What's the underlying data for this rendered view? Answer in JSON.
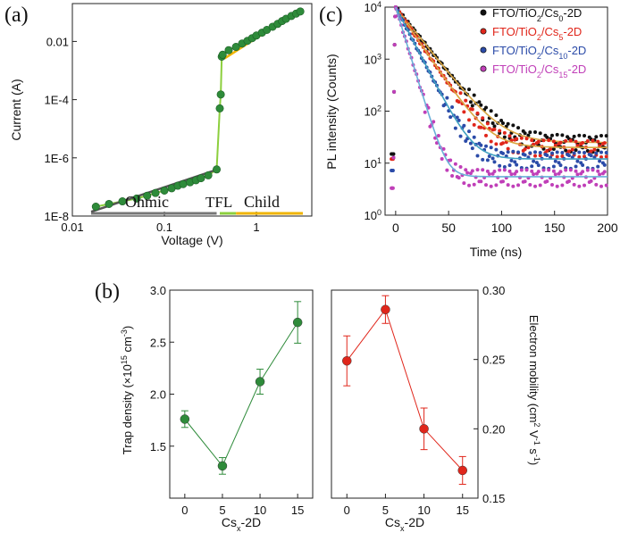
{
  "chart_data": [
    {
      "panel": "(a)",
      "type": "scatter",
      "xscale": "log",
      "yscale": "log",
      "xlabel": "Voltage (V)",
      "ylabel": "Current (A)",
      "xlim": [
        0.01,
        4.0
      ],
      "ylim": [
        1e-08,
        0.2
      ],
      "xticks": [
        {
          "v": 0.01,
          "label": "0.01"
        },
        {
          "v": 0.1,
          "label": "0.1"
        },
        {
          "v": 1,
          "label": "1"
        }
      ],
      "yticks": [
        {
          "v": 1e-08,
          "label": "1E-8"
        },
        {
          "v": 1e-06,
          "label": "1E-6"
        },
        {
          "v": 0.0001,
          "label": "1E-4"
        },
        {
          "v": 0.01,
          "label": "0.01"
        }
      ],
      "marker_color": "#2e8b3a",
      "trace_color": "#8ccf3d",
      "points": [
        [
          0.018,
          2.1e-08
        ],
        [
          0.025,
          2.6e-08
        ],
        [
          0.035,
          3.2e-08
        ],
        [
          0.05,
          4e-08
        ],
        [
          0.065,
          5e-08
        ],
        [
          0.08,
          6.2e-08
        ],
        [
          0.1,
          7.5e-08
        ],
        [
          0.12,
          9e-08
        ],
        [
          0.14,
          1.1e-07
        ],
        [
          0.16,
          1.25e-07
        ],
        [
          0.19,
          1.45e-07
        ],
        [
          0.22,
          1.7e-07
        ],
        [
          0.25,
          2e-07
        ],
        [
          0.3,
          2.5e-07
        ],
        [
          0.37,
          4e-07
        ],
        [
          0.4,
          5e-05
        ],
        [
          0.41,
          0.00015
        ],
        [
          0.42,
          0.003
        ],
        [
          0.43,
          0.0035
        ],
        [
          0.5,
          0.005
        ],
        [
          0.6,
          0.0065
        ],
        [
          0.7,
          0.0085
        ],
        [
          0.8,
          0.0105
        ],
        [
          0.9,
          0.013
        ],
        [
          1.0,
          0.016
        ],
        [
          1.15,
          0.02
        ],
        [
          1.3,
          0.025
        ],
        [
          1.5,
          0.032
        ],
        [
          1.7,
          0.04
        ],
        [
          1.9,
          0.05
        ],
        [
          2.1,
          0.06
        ],
        [
          2.4,
          0.075
        ],
        [
          2.7,
          0.09
        ],
        [
          3.0,
          0.107
        ]
      ],
      "fits": [
        {
          "name": "Ohmic fit",
          "color": "#555555",
          "x": [
            0.016,
            0.36
          ],
          "y": [
            1.4e-08,
            3.8e-07
          ]
        },
        {
          "name": "Child fit",
          "color": "#f0b400",
          "x": [
            0.45,
            3.1
          ],
          "y": [
            0.0026,
            0.13
          ]
        }
      ],
      "regions": [
        {
          "label": "Ohmic",
          "color": "#777777",
          "x": [
            0.016,
            0.37
          ]
        },
        {
          "label": "TFL",
          "color": "#8ccf3d",
          "x": [
            0.4,
            0.6
          ]
        },
        {
          "label": "Child",
          "color": "#f0b400",
          "x": [
            0.6,
            3.2
          ]
        }
      ]
    },
    {
      "panel": "(c)",
      "type": "line",
      "yscale": "log",
      "xlabel": "Time (ns)",
      "ylabel": "PL intensity (Counts)",
      "xlim": [
        -10,
        200
      ],
      "ylim": [
        1,
        10000
      ],
      "xticks": [
        {
          "v": 0,
          "label": "0"
        },
        {
          "v": 50,
          "label": "50"
        },
        {
          "v": 100,
          "label": "100"
        },
        {
          "v": 150,
          "label": "150"
        },
        {
          "v": 200,
          "label": "200"
        }
      ],
      "yticks": [
        {
          "v": 1,
          "base": "10",
          "exp": "0"
        },
        {
          "v": 10,
          "base": "10",
          "exp": "1"
        },
        {
          "v": 100,
          "base": "10",
          "exp": "2"
        },
        {
          "v": 1000,
          "base": "10",
          "exp": "3"
        },
        {
          "v": 10000,
          "base": "10",
          "exp": "4"
        }
      ],
      "legend_position": "top-right",
      "series": [
        {
          "legend": [
            {
              "t": "FTO/TiO"
            },
            {
              "t": "2",
              "sub": true
            },
            {
              "t": "/Cs"
            },
            {
              "t": "0",
              "sub": true
            },
            {
              "t": "-2D"
            }
          ],
          "color": "#111111",
          "fit_color": "#d9a640",
          "peak": 10000,
          "tau": 17,
          "floor": 25
        },
        {
          "legend": [
            {
              "t": "FTO/TiO"
            },
            {
              "t": "2",
              "sub": true
            },
            {
              "t": "/Cs"
            },
            {
              "t": "5",
              "sub": true
            },
            {
              "t": "-2D"
            }
          ],
          "color": "#e0261b",
          "fit_color": "#d9a640",
          "peak": 10000,
          "tau": 14.5,
          "floor": 20
        },
        {
          "legend": [
            {
              "t": "FTO/TiO"
            },
            {
              "t": "2",
              "sub": true
            },
            {
              "t": "/Cs"
            },
            {
              "t": "10",
              "sub": true
            },
            {
              "t": "-2D"
            }
          ],
          "color": "#2b4ba8",
          "fit_color": "#3fa0c0",
          "peak": 10000,
          "tau": 11,
          "floor": 12
        },
        {
          "legend": [
            {
              "t": "FTO/TiO"
            },
            {
              "t": "2",
              "sub": true
            },
            {
              "t": "/Cs"
            },
            {
              "t": "15",
              "sub": true
            },
            {
              "t": "-2D"
            }
          ],
          "color": "#c03fb8",
          "fit_color": "#6ab0d8",
          "peak": 10000,
          "tau": 6.5,
          "floor": 5.5
        }
      ]
    },
    {
      "panel": "(b)",
      "type": "scatter",
      "xlabel_main": "Cs",
      "xlabel_sub": "x",
      "xlabel_tail": "-2D",
      "ylabel_parts": [
        {
          "t": "Trap density (×10"
        },
        {
          "t": "15",
          "sup": true
        },
        {
          "t": " cm"
        },
        {
          "t": "-3",
          "sup": true
        },
        {
          "t": ")"
        }
      ],
      "xlim": [
        -2,
        17
      ],
      "ylim": [
        1.0,
        3.0
      ],
      "xticks": [
        0,
        5,
        10,
        15
      ],
      "yticks": [
        {
          "v": 1.5,
          "label": "1.5"
        },
        {
          "v": 2.0,
          "label": "2.0"
        },
        {
          "v": 2.5,
          "label": "2.5"
        },
        {
          "v": 3.0,
          "label": "3.0"
        }
      ],
      "color": "#2e8b3a",
      "x": [
        0,
        5,
        10,
        15
      ],
      "values": [
        1.76,
        1.31,
        2.12,
        2.69
      ],
      "errors": [
        0.08,
        0.08,
        0.12,
        0.2
      ]
    },
    {
      "panel": "(b-right)",
      "type": "scatter",
      "xlabel_main": "Cs",
      "xlabel_sub": "x",
      "xlabel_tail": "-2D",
      "ylabel_parts": [
        {
          "t": "Electron mobility (cm"
        },
        {
          "t": "2",
          "sup": true
        },
        {
          "t": " V"
        },
        {
          "t": "-1",
          "sup": true
        },
        {
          "t": " s"
        },
        {
          "t": "-1",
          "sup": true
        },
        {
          "t": ")"
        }
      ],
      "xlim": [
        -2,
        17
      ],
      "ylim": [
        0.15,
        0.3
      ],
      "xticks": [
        0,
        5,
        10,
        15
      ],
      "yticks": [
        {
          "v": 0.15,
          "label": "0.15"
        },
        {
          "v": 0.2,
          "label": "0.20"
        },
        {
          "v": 0.25,
          "label": "0.25"
        },
        {
          "v": 0.3,
          "label": "0.30"
        }
      ],
      "color": "#e0261b",
      "x": [
        0,
        5,
        10,
        15
      ],
      "values": [
        0.249,
        0.286,
        0.2,
        0.17
      ],
      "errors": [
        0.018,
        0.01,
        0.015,
        0.01
      ]
    }
  ],
  "panel_labels": {
    "a": "(a)",
    "b": "(b)",
    "c": "(c)"
  },
  "region_labels": {
    "ohmic": "Ohmic",
    "tfl": "TFL",
    "child": "Child"
  }
}
